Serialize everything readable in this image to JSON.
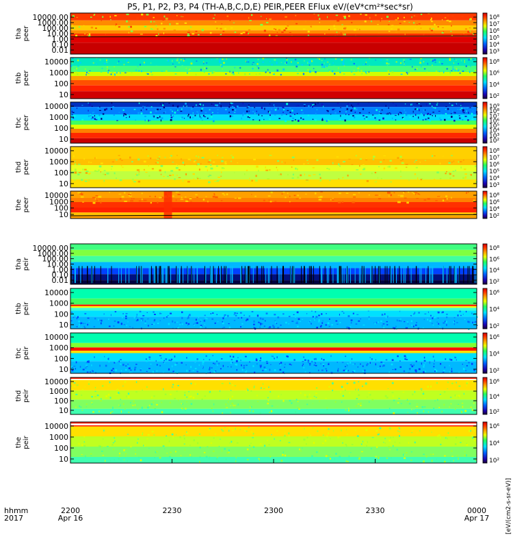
{
  "title": "P5, P1, P2, P3, P4 (TH-A,B,C,D,E) PEIR,PEER EFlux eV/(eV*cm²*sec*sr)",
  "time_axis": {
    "row_label_1": "hhmm",
    "row_label_2": "2017",
    "ticks": [
      {
        "label": "2200",
        "sublabel": "Apr 16",
        "t": 0
      },
      {
        "label": "2230",
        "sublabel": "",
        "t": 0.25
      },
      {
        "label": "2300",
        "sublabel": "",
        "t": 0.5
      },
      {
        "label": "2330",
        "sublabel": "",
        "t": 0.75
      },
      {
        "label": "0000",
        "sublabel": "Apr 17",
        "t": 1
      }
    ]
  },
  "colorbar_label": "[eV/(cm2-s-sr-eV)]",
  "chart_data": {
    "type": "heatmap",
    "x_start": "2017-04-16 22:00",
    "x_end": "2017-04-17 00:00",
    "panels": [
      {
        "probe": "tha",
        "species": "peer",
        "yticks": [
          "10000.00",
          "1000.00",
          "100.00",
          "10.00",
          "1.00",
          "0.10",
          "0.01"
        ],
        "cbar": [
          "10⁸",
          "10⁷",
          "10⁶",
          "10⁵",
          "10⁴",
          "10³"
        ],
        "style": "tha_peer"
      },
      {
        "probe": "thb",
        "species": "peer",
        "yticks": [
          "10000",
          "1000",
          "100",
          "10"
        ],
        "cbar": [
          "10⁸",
          "10⁶",
          "10⁴",
          "10²"
        ],
        "style": "thb_peer"
      },
      {
        "probe": "thc",
        "species": "peer",
        "yticks": [
          "10000",
          "1000",
          "100",
          "10"
        ],
        "cbar": [
          "10⁹",
          "10⁸",
          "10⁷",
          "10⁶",
          "10⁵",
          "10⁴",
          "10³",
          "10²"
        ],
        "style": "thc_peer"
      },
      {
        "probe": "thd",
        "species": "peer",
        "yticks": [
          "10000",
          "1000",
          "100",
          "10"
        ],
        "cbar": [
          "10⁸",
          "10⁷",
          "10⁶",
          "10⁵",
          "10⁴",
          "10³"
        ],
        "style": "thd_peer"
      },
      {
        "probe": "the",
        "species": "peer",
        "yticks": [
          "10000",
          "1000",
          "100",
          "10"
        ],
        "cbar": [
          "10⁸",
          "10⁶",
          "10⁴",
          "10²"
        ],
        "style": "the_peer"
      },
      {
        "probe": "tha",
        "species": "peir",
        "yticks": [
          "10000.00",
          "1000.00",
          "100.00",
          "10.00",
          "1.00",
          "0.10",
          "0.01"
        ],
        "cbar": [
          "10⁸",
          "10⁶",
          "10⁴",
          "10²"
        ],
        "style": "tha_peir"
      },
      {
        "probe": "thb",
        "species": "peir",
        "yticks": [
          "10000",
          "1000",
          "100",
          "10"
        ],
        "cbar": [
          "10⁶",
          "10⁴",
          "10²"
        ],
        "style": "thb_peir"
      },
      {
        "probe": "thc",
        "species": "peir",
        "yticks": [
          "10000",
          "1000",
          "100",
          "10"
        ],
        "cbar": [
          "10⁶",
          "10⁴",
          "10²"
        ],
        "style": "thc_peir"
      },
      {
        "probe": "thd",
        "species": "peir",
        "yticks": [
          "10000",
          "1000",
          "100",
          "10"
        ],
        "cbar": [
          "10⁶",
          "10⁴",
          "10²"
        ],
        "style": "thd_peir"
      },
      {
        "probe": "the",
        "species": "peir",
        "yticks": [
          "10000",
          "1000",
          "100",
          "10"
        ],
        "cbar": [
          "10⁶",
          "10⁴",
          "10²"
        ],
        "style": "the_peir"
      }
    ]
  }
}
